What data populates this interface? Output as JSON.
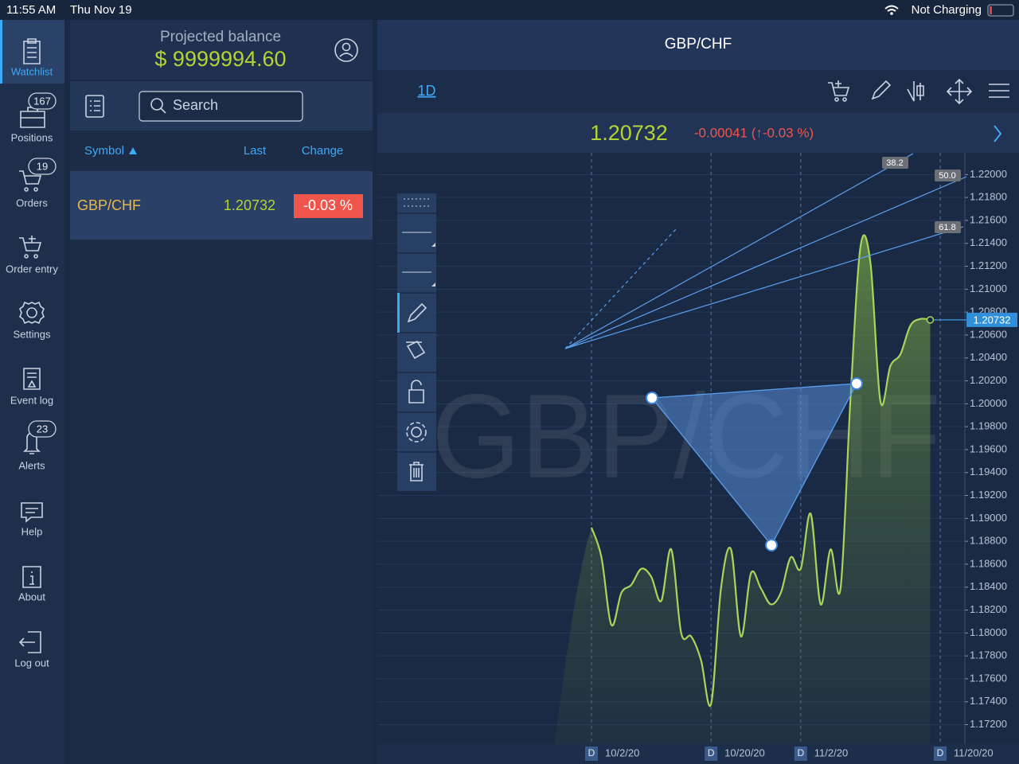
{
  "status_bar": {
    "time": "11:55 AM",
    "date": "Thu Nov 19",
    "battery": "Not Charging"
  },
  "nav": [
    {
      "label": "Watchlist"
    },
    {
      "label": "Positions",
      "badge": "167"
    },
    {
      "label": "Orders",
      "badge": "19"
    },
    {
      "label": "Order entry"
    },
    {
      "label": "Settings"
    },
    {
      "label": "Event log"
    },
    {
      "label": "Alerts",
      "badge": "23"
    },
    {
      "label": "Help"
    },
    {
      "label": "About"
    },
    {
      "label": "Log out"
    }
  ],
  "watchlist": {
    "balance_label": "Projected balance",
    "balance": "$ 9999994.60",
    "search_placeholder": "Search",
    "columns": [
      "Symbol",
      "Last",
      "Change"
    ],
    "rows": [
      [
        "GBP/CHF",
        "1.20732",
        "-0.03 %"
      ]
    ]
  },
  "chart_panel": {
    "title": "GBP/CHF",
    "timeframe": "1D",
    "price": "1.20732",
    "change": "-0.00041 (↑-0.03 %)",
    "watermark": "GBP/CHF",
    "fib_labels": [
      "38.2",
      "50.0",
      "61.8"
    ],
    "chart_data": {
      "type": "line",
      "color": "#a8d65a",
      "categories": [
        "10/2/20",
        null,
        null,
        null,
        null,
        null,
        null,
        null,
        null,
        null,
        null,
        null,
        "10/20/20",
        null,
        null,
        null,
        null,
        null,
        null,
        null,
        null,
        "11/2/20",
        null,
        null,
        null,
        null,
        null,
        null,
        null,
        null,
        null,
        null,
        null,
        null,
        null,
        "11/20/20"
      ],
      "values": [
        1.1892,
        1.1866,
        1.1807,
        1.1835,
        1.1842,
        1.1856,
        1.1849,
        1.1828,
        1.1873,
        1.18,
        1.1797,
        1.1776,
        1.1738,
        1.1839,
        1.1873,
        1.1797,
        1.1852,
        1.1839,
        1.1825,
        1.1835,
        1.1866,
        1.1856,
        1.1904,
        1.1825,
        1.1873,
        1.1839,
        1.2005,
        1.2137,
        1.2123,
        1.2002,
        1.2033,
        1.2043,
        1.2068,
        1.2074,
        1.20732,
        null
      ],
      "ylim": [
        1.1703,
        1.2219
      ],
      "yticks": [
        {
          "value": 1.172,
          "label": "1.17200"
        },
        {
          "value": 1.174,
          "label": "1.17400"
        },
        {
          "value": 1.176,
          "label": "1.17600"
        },
        {
          "value": 1.178,
          "label": "1.17800"
        },
        {
          "value": 1.18,
          "label": "1.18000"
        },
        {
          "value": 1.182,
          "label": "1.18200"
        },
        {
          "value": 1.184,
          "label": "1.18400"
        },
        {
          "value": 1.186,
          "label": "1.18600"
        },
        {
          "value": 1.188,
          "label": "1.18800"
        },
        {
          "value": 1.19,
          "label": "1.19000"
        },
        {
          "value": 1.192,
          "label": "1.19200"
        },
        {
          "value": 1.194,
          "label": "1.19400"
        },
        {
          "value": 1.196,
          "label": "1.19600"
        },
        {
          "value": 1.198,
          "label": "1.19800"
        },
        {
          "value": 1.2,
          "label": "1.20000"
        },
        {
          "value": 1.202,
          "label": "1.20200"
        },
        {
          "value": 1.204,
          "label": "1.20400"
        },
        {
          "value": 1.206,
          "label": "1.20600"
        },
        {
          "value": 1.208,
          "label": "1.20800"
        },
        {
          "value": 1.21,
          "label": "1.21000"
        },
        {
          "value": 1.212,
          "label": "1.21200"
        },
        {
          "value": 1.214,
          "label": "1.21400"
        },
        {
          "value": 1.216,
          "label": "1.21600"
        },
        {
          "value": 1.218,
          "label": "1.21800"
        },
        {
          "value": 1.22,
          "label": "1.22000"
        }
      ],
      "grid": true,
      "last_marker": 1.20732
    }
  }
}
